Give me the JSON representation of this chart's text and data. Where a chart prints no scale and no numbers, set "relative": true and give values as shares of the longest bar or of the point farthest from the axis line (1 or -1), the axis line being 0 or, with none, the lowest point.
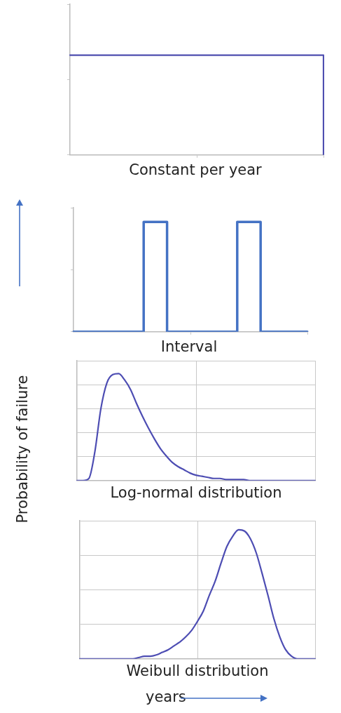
{
  "chart_data": [
    {
      "type": "step",
      "title": "Constant per year",
      "relative": true,
      "marker": "none",
      "categories": [
        null,
        null,
        null,
        null,
        null,
        null,
        null,
        null,
        null,
        null,
        null
      ],
      "series": [
        {
          "color": "#4f4fb0",
          "values": [
            1,
            1,
            1,
            1,
            1,
            1,
            1,
            1,
            1,
            1,
            0
          ]
        }
      ]
    },
    {
      "type": "step",
      "title": "Interval",
      "relative": true,
      "marker": "none",
      "categories": [
        null,
        null,
        null,
        null,
        null,
        null,
        null,
        null,
        null,
        null,
        null,
        null,
        null,
        null,
        null,
        null,
        null,
        null,
        null,
        null,
        null
      ],
      "series": [
        {
          "color": "#4472c4",
          "values": [
            0,
            0,
            0,
            0,
            0,
            0,
            1,
            1,
            0,
            0,
            0,
            0,
            0,
            0,
            1,
            1,
            0,
            0,
            0,
            0,
            0
          ]
        }
      ]
    },
    {
      "type": "line",
      "title": "Log-normal distribution",
      "ylabel": "Probability of failure",
      "relative": true,
      "grid": true,
      "marker": "none",
      "categories": [
        null,
        null,
        null,
        null,
        null,
        null,
        null,
        null,
        null,
        null,
        null,
        null,
        null,
        null,
        null,
        null,
        null,
        null,
        null,
        null,
        null,
        null,
        null,
        null,
        null,
        null,
        null,
        null,
        null,
        null,
        null,
        null,
        null,
        null,
        null,
        null,
        null,
        null,
        null,
        null,
        null
      ],
      "series": [
        {
          "color": "#4d4db3",
          "values": [
            0,
            0,
            0.02,
            0.27,
            0.67,
            0.91,
            0.99,
            1,
            0.94,
            0.85,
            0.72,
            0.6,
            0.49,
            0.39,
            0.3,
            0.23,
            0.17,
            0.13,
            0.1,
            0.07,
            0.05,
            0.04,
            0.03,
            0.02,
            0.02,
            0.01,
            0.01,
            0.01,
            0.01,
            0,
            0,
            0,
            0,
            0,
            0,
            0,
            0,
            0,
            0,
            0,
            0
          ]
        }
      ]
    },
    {
      "type": "line",
      "title": "Weibull distribution",
      "xlabel": "years",
      "relative": true,
      "grid": true,
      "marker": "none",
      "categories": [
        null,
        null,
        null,
        null,
        null,
        null,
        null,
        null,
        null,
        null,
        null,
        null,
        null,
        null,
        null,
        null,
        null,
        null,
        null,
        null,
        null,
        null,
        null,
        null,
        null,
        null,
        null,
        null,
        null,
        null,
        null,
        null,
        null,
        null,
        null,
        null,
        null,
        null,
        null,
        null,
        null
      ],
      "series": [
        {
          "color": "#4d4db3",
          "values": [
            0,
            0,
            0,
            0,
            0,
            0,
            0,
            0,
            0,
            0,
            0.01,
            0.02,
            0.02,
            0.03,
            0.05,
            0.07,
            0.1,
            0.13,
            0.17,
            0.22,
            0.29,
            0.37,
            0.49,
            0.6,
            0.74,
            0.87,
            0.95,
            1,
            0.99,
            0.93,
            0.82,
            0.66,
            0.49,
            0.31,
            0.17,
            0.07,
            0.02,
            0,
            0,
            0,
            0
          ]
        }
      ]
    }
  ]
}
